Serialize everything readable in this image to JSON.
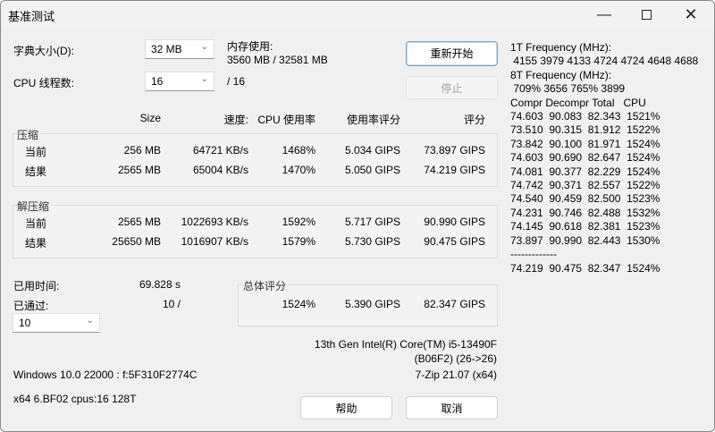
{
  "window": {
    "title": "基准测试",
    "minimize_icon": "minimize-icon",
    "maximize_icon": "maximize-icon",
    "close_icon": "close-icon"
  },
  "settings": {
    "dict_label": "字典大小(D):",
    "dict_value": "32 MB",
    "threads_label": "CPU 线程数:",
    "threads_value": "16",
    "threads_max": "/ 16",
    "mem_label": "内存使用:",
    "mem_value": "3560 MB / 32581 MB"
  },
  "buttons": {
    "restart": "重新开始",
    "stop": "停止",
    "help": "帮助",
    "cancel": "取消"
  },
  "table": {
    "headers": [
      "Size",
      "速度:",
      "CPU 使用率",
      "使用率评分",
      "评分"
    ],
    "compress": {
      "label": "压缩",
      "rows": [
        {
          "name": "当前",
          "cells": [
            "256 MB",
            "64721 KB/s",
            "1468%",
            "5.034 GIPS",
            "73.897 GIPS"
          ]
        },
        {
          "name": "结果",
          "cells": [
            "2565 MB",
            "65004 KB/s",
            "1470%",
            "5.050 GIPS",
            "74.219 GIPS"
          ]
        }
      ]
    },
    "decompress": {
      "label": "解压缩",
      "rows": [
        {
          "name": "当前",
          "cells": [
            "2565 MB",
            "1022693 KB/s",
            "1592%",
            "5.717 GIPS",
            "90.990 GIPS"
          ]
        },
        {
          "name": "结果",
          "cells": [
            "25650 MB",
            "1016907 KB/s",
            "1579%",
            "5.730 GIPS",
            "90.475 GIPS"
          ]
        }
      ]
    }
  },
  "progress": {
    "elapsed_label": "已用时间:",
    "elapsed_value": "69.828 s",
    "passed_label": "已通过:",
    "passed_value": "10 /",
    "passes_select": "10"
  },
  "total": {
    "label": "总体评分",
    "cpu": "1524%",
    "rating": "5.390 GIPS",
    "score": "82.347 GIPS"
  },
  "sysinfo": {
    "cpu_name": "13th Gen Intel(R) Core(TM) i5-13490F",
    "cpu_id": "(B06F2) (26->26)",
    "os": "Windows 10.0 22000 :  f:5F310F2774C",
    "version": "7-Zip 21.07 (x64)",
    "arch": "x64 6.BF02 cpus:16 128T"
  },
  "log": [
    "1T Frequency (MHz):",
    " 4155 3979 4133 4724 4724 4648 4688",
    "8T Frequency (MHz):",
    " 709% 3656 765% 3899",
    "Compr Decompr Total   CPU",
    "74.603  90.083  82.343  1521%",
    "73.510  90.315  81.912  1522%",
    "73.842  90.100  81.971  1524%",
    "74.603  90.690  82.647  1524%",
    "74.081  90.377  82.229  1524%",
    "74.742  90.371  82.557  1522%",
    "74.540  90.459  82.500  1523%",
    "74.231  90.746  82.488  1532%",
    "74.145  90.618  82.381  1523%",
    "73.897  90.990  82.443  1530%",
    "-------------",
    "74.219  90.475  82.347  1524%"
  ]
}
